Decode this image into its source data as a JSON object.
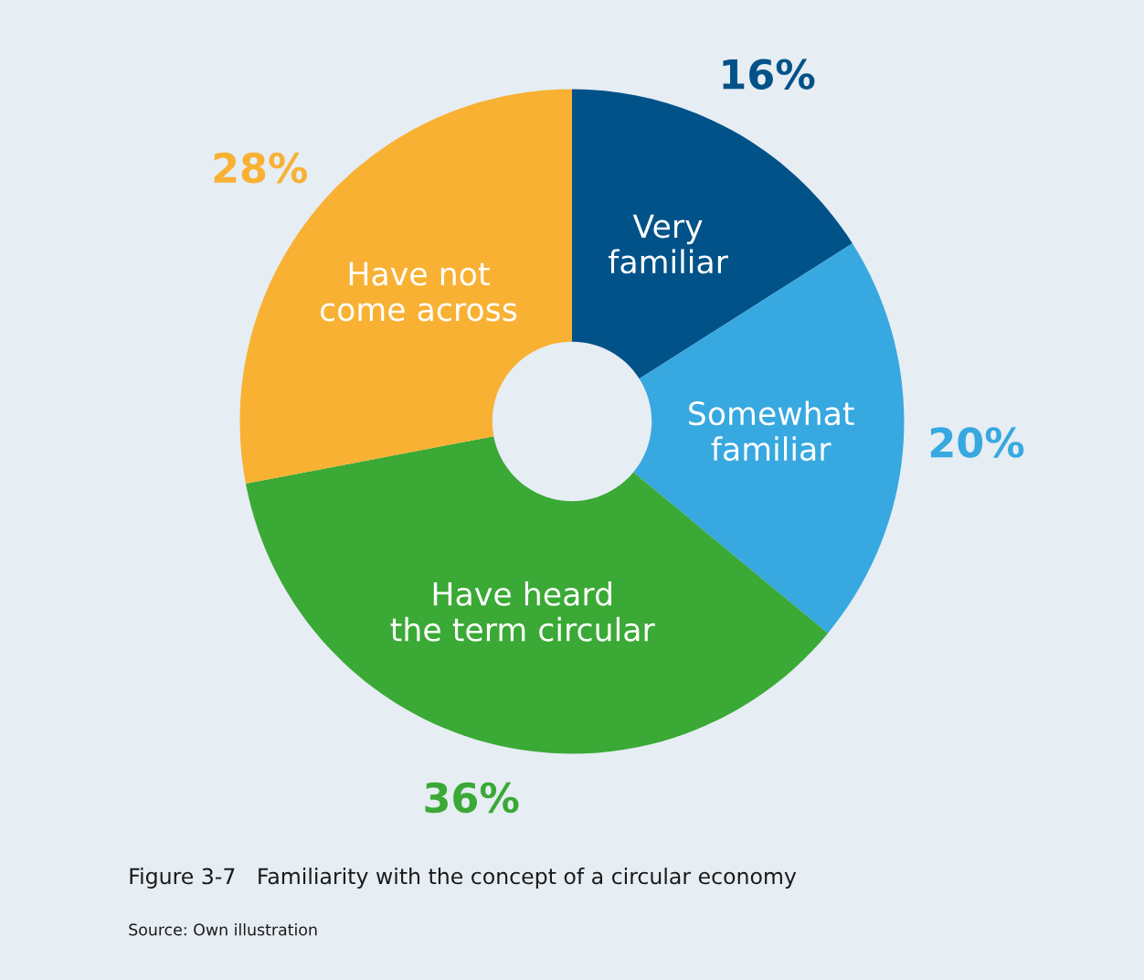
{
  "chart_data": {
    "type": "donut",
    "title": "Figure 3-7   Familiarity with the concept of a circular economy",
    "categories": [
      "Very\nfamiliar",
      "Somewhat\nfamiliar",
      "Have heard\nthe term circular",
      "Have not\ncome across"
    ],
    "values": [
      16,
      20,
      36,
      28
    ],
    "colors": [
      "#005288",
      "#37a8e0",
      "#3aa935",
      "#f8b133"
    ],
    "value_labels": [
      "16%",
      "20%",
      "36%",
      "28%"
    ],
    "annotations": [
      "Source: Own illustration"
    ]
  }
}
